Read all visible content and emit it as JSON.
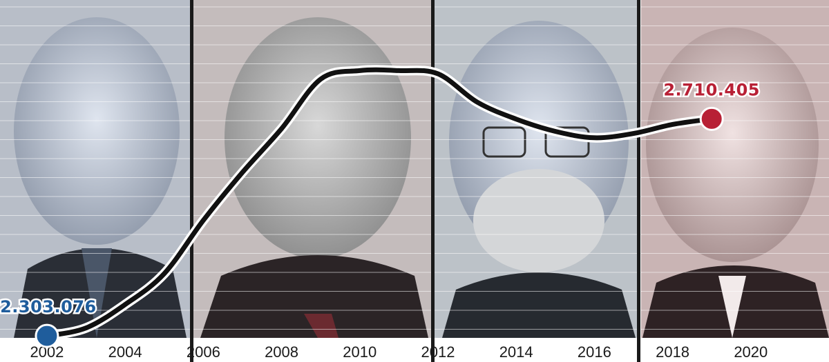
{
  "chart_data": {
    "type": "line",
    "title": "",
    "xlabel": "",
    "ylabel": "",
    "x_ticks": [
      "2002",
      "2004",
      "2006",
      "2008",
      "2010",
      "2012",
      "2014",
      "2016",
      "2018",
      "2020"
    ],
    "series": [
      {
        "x": [
          2002,
          2003,
          2004,
          2005,
          2006,
          2007,
          2008,
          2009,
          2010,
          2011,
          2012,
          2013,
          2014,
          2015,
          2016,
          2017,
          2018,
          2019
        ],
        "values": [
          2303076,
          2318000,
          2362000,
          2420000,
          2520000,
          2610000,
          2692000,
          2785000,
          2801000,
          2801000,
          2795000,
          2742000,
          2710000,
          2687000,
          2675000,
          2683000,
          2700000,
          2710405
        ],
        "color": "#111111"
      }
    ],
    "ylim": [
      2280000,
      2830000
    ],
    "xlim": [
      2000.8,
      2022
    ],
    "annotations": [
      {
        "text": "2.303.076",
        "x": 2002,
        "y": 2303076,
        "color": "#1f5d9c",
        "position": "above"
      },
      {
        "text": "2.710.405",
        "x": 2019,
        "y": 2710405,
        "color": "#b82035",
        "position": "above"
      }
    ],
    "grid": true,
    "background_portraits": 4,
    "legend": "none"
  }
}
